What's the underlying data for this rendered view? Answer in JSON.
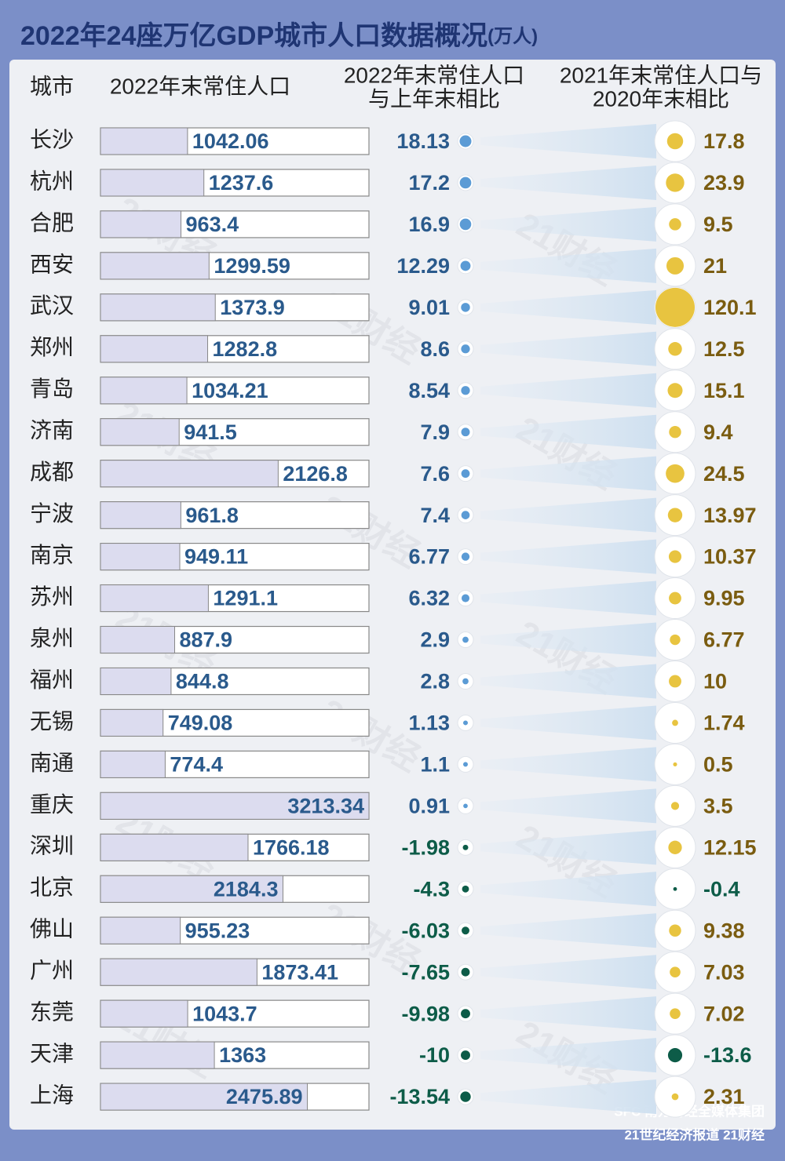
{
  "chart_data": {
    "type": "bar-dot-table",
    "title": "2022年24座万亿GDP城市人口数据概况",
    "unit": "(万人)",
    "category_header": "城市",
    "categories": [
      "长沙",
      "杭州",
      "合肥",
      "西安",
      "武汉",
      "郑州",
      "青岛",
      "济南",
      "成都",
      "宁波",
      "南京",
      "苏州",
      "泉州",
      "福州",
      "无锡",
      "南通",
      "重庆",
      "深圳",
      "北京",
      "佛山",
      "广州",
      "东莞",
      "天津",
      "上海"
    ],
    "series": [
      {
        "header": [
          "2022年末常住人口"
        ],
        "color": "#dcdcef",
        "label_color": "#2a5a8c",
        "values": [
          1042.06,
          1237.6,
          963.4,
          1299.59,
          1373.9,
          1282.8,
          1034.21,
          941.5,
          2126.8,
          961.8,
          949.11,
          1291.1,
          887.9,
          844.8,
          749.08,
          774.4,
          3213.34,
          1766.18,
          2184.3,
          955.23,
          1873.41,
          1043.7,
          1363,
          2475.89
        ]
      },
      {
        "header": [
          "2022年末常住人口",
          "与上年末相比"
        ],
        "color": "#5b9bd5",
        "negative_color": "#0d5c48",
        "label_color": "#2a5a8c",
        "values": [
          18.13,
          17.2,
          16.9,
          12.29,
          9.01,
          8.6,
          8.54,
          7.9,
          7.6,
          7.4,
          6.77,
          6.32,
          2.9,
          2.8,
          1.13,
          1.1,
          0.91,
          -1.98,
          -4.3,
          -6.03,
          -7.65,
          -9.98,
          -10,
          -13.54
        ]
      },
      {
        "header": [
          "2021年末常住人口与",
          "2020年末相比"
        ],
        "color": "#e8c440",
        "negative_color": "#0d5c48",
        "label_color": "#7a5c10",
        "values": [
          17.8,
          23.9,
          9.5,
          21,
          120.1,
          12.5,
          15.1,
          9.4,
          24.5,
          13.97,
          10.37,
          9.95,
          6.77,
          10,
          1.74,
          0.5,
          3.5,
          12.15,
          -0.4,
          9.38,
          7.03,
          7.02,
          -13.6,
          2.31
        ]
      }
    ],
    "watermark": "21财经",
    "footer": [
      "SFC 南方财经全媒体集团",
      "21世纪经济报道 21财经"
    ]
  }
}
